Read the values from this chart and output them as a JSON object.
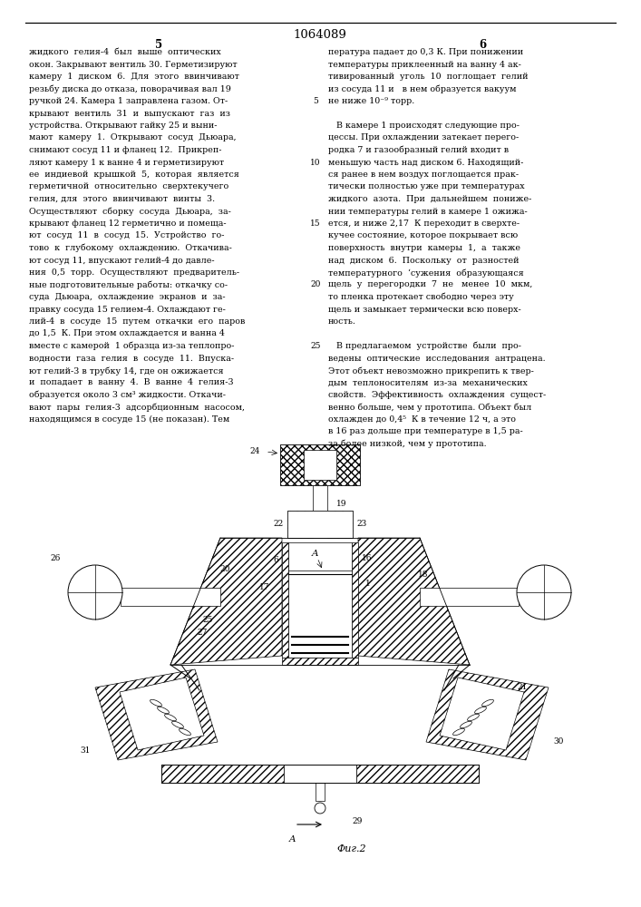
{
  "patent_number": "1064089",
  "page_left": "5",
  "page_right": "6",
  "fig_label": "Фиг.2",
  "bg_color": "#ffffff",
  "text_color": "#000000",
  "font_size_body": 6.8,
  "font_size_header": 9.0,
  "font_size_page": 8.0,
  "left_col_lines": [
    "жидкого  гелия-4  был  выше  оптических",
    "окон. Закрывают вентиль 30. Герметизируют",
    "камеру  1  диском  6.  Для  этого  ввинчивают",
    "резьбу диска до отказа, поворачивая вал 19",
    "ручкой 24. Камера 1 заправлена газом. От-",
    "крывают  вентиль  31  и  выпускают  газ  из",
    "устройства. Открывают гайку 25 и выни-",
    "мают  камеру  1.  Открывают  сосуд  Дьюара,",
    "снимают сосуд 11 и фланец 12.  Прикреп-",
    "ляют камеру 1 к ванне 4 и герметизируют",
    "ее  индиевой  крышкой  5,  которая  является",
    "герметичной  относительно  сверхтекучего",
    "гелия, для  этого  ввинчивают  винты  3.",
    "Осуществляют  сборку  сосуда  Дьюара,  за-",
    "крывают фланец 12 герметично и помеща-",
    "ют  сосуд  11  в  сосуд  15.  Устройство  го-",
    "тово  к  глубокому  охлаждению.  Откачива-",
    "ют сосуд 11, впускают гелий-4 до давле-",
    "ния  0,5  торр.  Осуществляют  предваритель-",
    "ные подготовительные работы: откачку со-",
    "суда  Дьюара,  охлаждение  экранов  и  за-",
    "правку сосуда 15 гелием-4. Охлаждают ге-",
    "лий-4  в  сосуде  15  путем  откачки  его  паров",
    "до 1,5  К. При этом охлаждается и ванна 4",
    "вместе с камерой  1 образца из-за теплопро-",
    "водности  газа  гелия  в  сосуде  11.  Впуска-",
    "ют гелий-3 в трубку 14, где он ожижается",
    "и  попадает  в  ванну  4.  В  ванне  4  гелия-3",
    "образуется около 3 см³ жидкости. Откачи-",
    "вают  пары  гелия-3  адсорбционным  насосом,",
    "находящимся в сосуде 15 (не показан). Тем"
  ],
  "right_col_lines": [
    "пература падает до 0,3 К. При понижении",
    "температуры приклеенный на ванну 4 ак-",
    "тивированный  уголь  10  поглощает  гелий",
    "из сосуда 11 и   в нем образуется вакуум",
    "не ниже 10⁻⁹ торр.",
    "",
    "   В камере 1 происходят следующие про-",
    "цессы. При охлаждении затекает перего-",
    "родка 7 и газообразный гелий входит в",
    "меньшую часть над диском 6. Находящий-",
    "ся ранее в нем воздух поглощается прак-",
    "тически полностью уже при температурах",
    "жидкого  азота.  При  дальнейшем  пониже-",
    "нии температуры гелий в камере 1 ожижа-",
    "ется, и ниже 2,17  К переходит в сверхте-",
    "кучее состояние, которое покрывает всю",
    "поверхность  внутри  камеры  1,  а  также",
    "над  диском  6.  Поскольку  от  разностей",
    "температурного  ‘сужения  образующаяся",
    "щель  у  перегородки  7  не   менее  10  мкм,",
    "то пленка протекает свободно через эту",
    "щель и замыкает термически всю поверх-",
    "ность.",
    "",
    "   В предлагаемом  устройстве  были  про-",
    "ведены  оптические  исследования  антрацена.",
    "Этот объект невозможно прикрепить к твер-",
    "дым  теплоносителям  из-за  механических",
    "свойств.  Эффективность  охлаждения  сущест-",
    "венно больше, чем у прототипа. Объект был",
    "охлажден до 0,4⁵  К в течение 12 ч, а это",
    "в 16 раз дольше при температуре в 1,5 ра-",
    "за более низкой, чем у прототипа."
  ],
  "line_numbers": [
    5,
    10,
    15,
    20,
    25
  ],
  "line_number_rows": [
    4,
    9,
    14,
    19,
    24
  ]
}
